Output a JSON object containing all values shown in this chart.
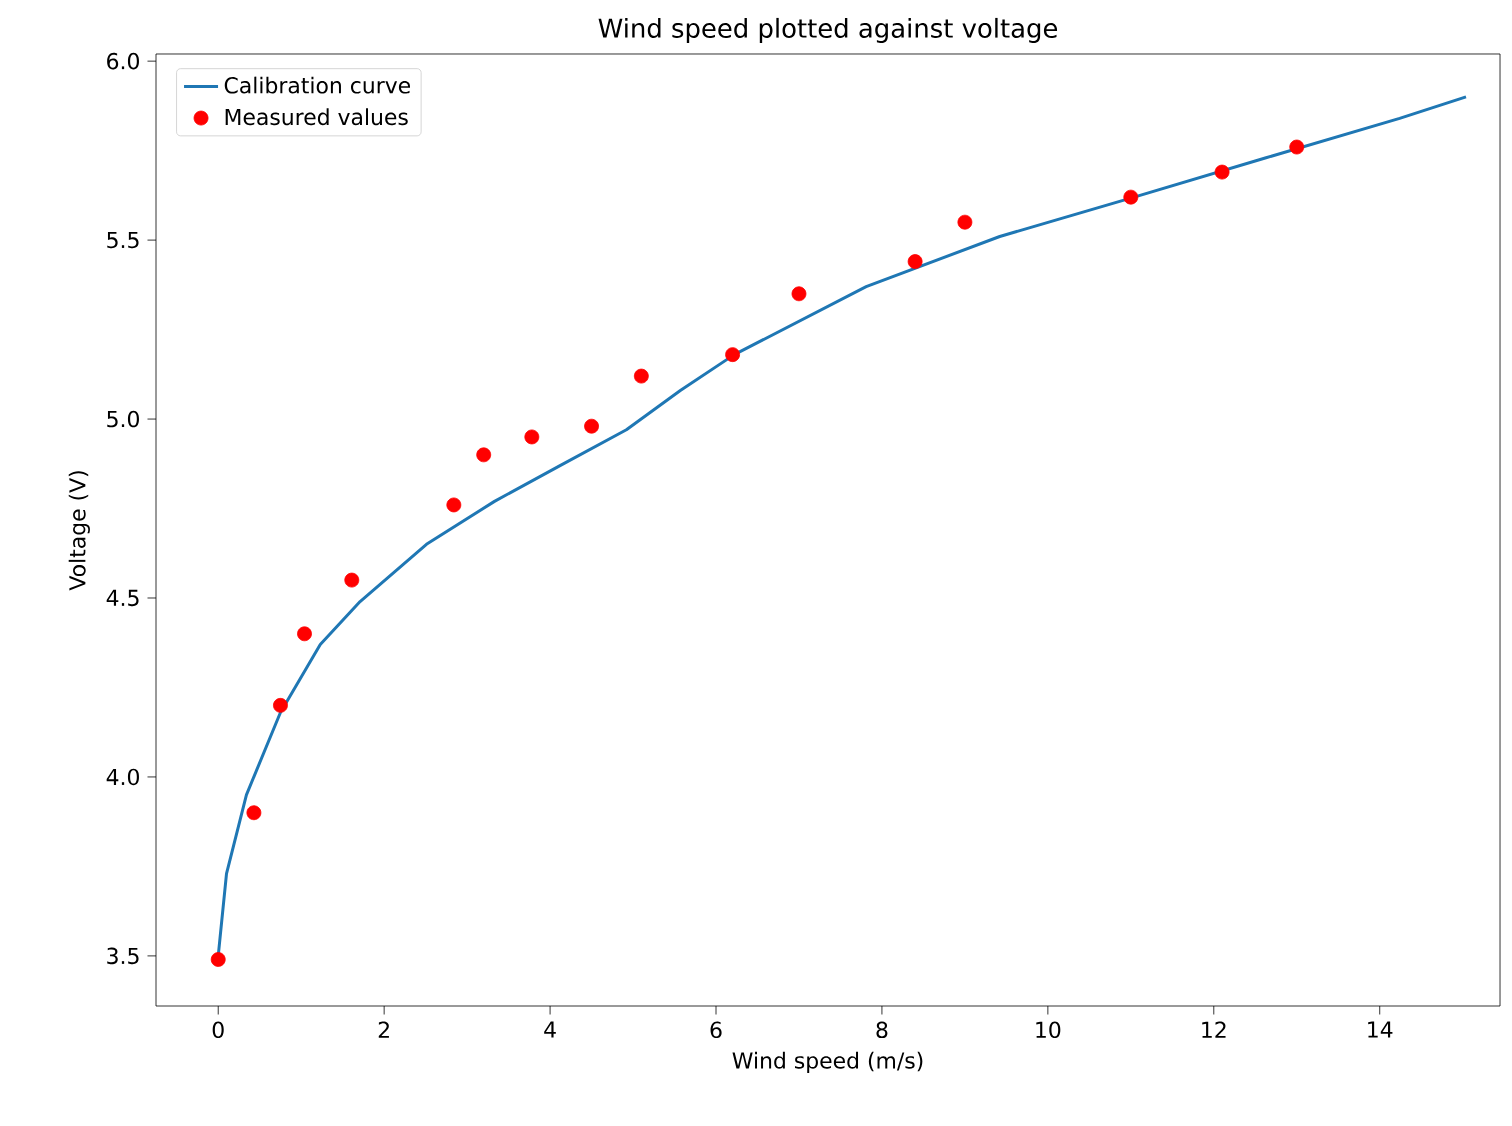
{
  "chart_data": {
    "type": "line",
    "title": "Wind speed plotted against voltage",
    "xlabel": "Wind speed (m/s)",
    "ylabel": "Voltage (V)",
    "xlim": [
      -0.75,
      15.45
    ],
    "ylim": [
      3.36,
      6.02
    ],
    "xticks": [
      0,
      2,
      4,
      6,
      8,
      10,
      12,
      14
    ],
    "yticks": [
      {
        "value": 3.5,
        "label": "3.5"
      },
      {
        "value": 4,
        "label": "4.0"
      },
      {
        "value": 4.5,
        "label": "4.5"
      },
      {
        "value": 5,
        "label": "5.0"
      },
      {
        "value": 5.5,
        "label": "5.5"
      },
      {
        "value": 6,
        "label": "6.0"
      }
    ],
    "legend": "top left",
    "series": [
      {
        "name": "Calibration curve",
        "color": "#1f77b4",
        "line_style": "solid",
        "x": [
          0,
          0.1,
          0.34,
          0.75,
          1.23,
          1.71,
          2.51,
          3.33,
          4.12,
          4.92,
          5.57,
          6.22,
          7.81,
          9.42,
          11.04,
          12.63,
          14.24,
          15.04
        ],
        "values": [
          3.5,
          3.73,
          3.95,
          4.18,
          4.37,
          4.49,
          4.65,
          4.77,
          4.87,
          4.97,
          5.08,
          5.18,
          5.37,
          5.51,
          5.62,
          5.73,
          5.84,
          5.9
        ]
      },
      {
        "name": "Measured values",
        "type": "scatter",
        "color": "#ff0000",
        "x": [
          0,
          0.43,
          0.75,
          1.04,
          1.61,
          2.84,
          3.2,
          3.78,
          4.5,
          5.1,
          6.2,
          7.0,
          8.4,
          9.0,
          11.0,
          12.1,
          13.0
        ],
        "values": [
          3.49,
          3.9,
          4.2,
          4.4,
          4.55,
          4.76,
          4.9,
          4.95,
          4.98,
          5.12,
          5.18,
          5.35,
          5.44,
          5.55,
          5.62,
          5.69,
          5.76
        ]
      }
    ]
  }
}
